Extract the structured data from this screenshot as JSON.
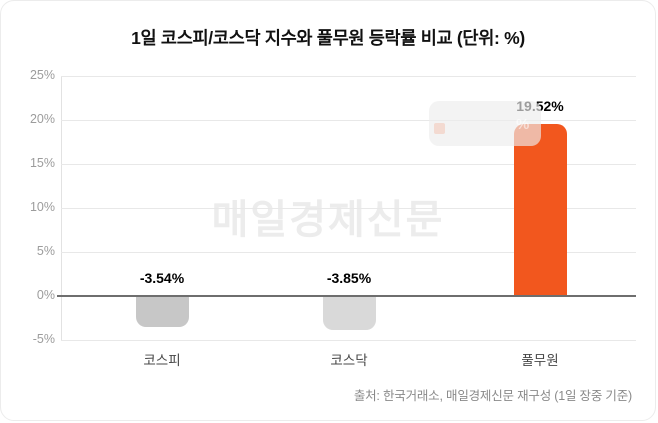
{
  "card": {
    "title": "1일 코스피/코스닥 지수와 풀무원 등락률 비교 (단위: %)",
    "watermark": "매일경제신문",
    "source": "출처: 한국거래소, 매일경제신문 재구성 (1일 장중 기준)"
  },
  "tooltip": {
    "visible_glyph": "%",
    "swatch_color": "#f2571e"
  },
  "colors": {
    "zero_line": "#6e6e6e",
    "gridline": "#e8e8e8",
    "axis_label": "#9c9c9c",
    "category_label": "#474747",
    "value_label": "#000000",
    "watermark": "#ececec",
    "source_text": "#8a8a8a"
  },
  "chart_data": {
    "type": "bar",
    "title": "1일 코스피/코스닥 지수와 풀무원 등락률 비교 (단위: %)",
    "unit": "%",
    "categories": [
      "코스피",
      "코스닥",
      "풀무원"
    ],
    "values": [
      -3.54,
      -3.85,
      19.52
    ],
    "value_labels": [
      "-3.54%",
      "-3.85%",
      "19.52%"
    ],
    "bar_colors": [
      "#c7c7c7",
      "#d9d9d9",
      "#f2571e"
    ],
    "xlabel": "",
    "ylabel": "",
    "ylim": [
      -5,
      25
    ],
    "yticks": [
      25,
      20,
      15,
      10,
      5,
      0,
      -5
    ],
    "ytick_labels": [
      "25%",
      "20%",
      "15%",
      "10%",
      "5%",
      "0%",
      "-5%"
    ],
    "grid": true,
    "legend": "none",
    "source": "출처: 한국거래소, 매일경제신문 재구성 (1일 장중 기준)"
  }
}
